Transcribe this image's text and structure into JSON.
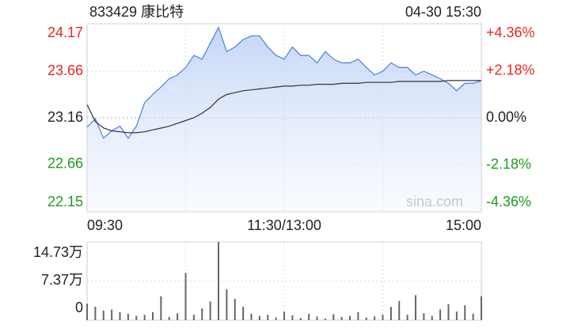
{
  "chart_data": [
    {
      "type": "line",
      "title": "833429 康比特",
      "timestamp": "04-30 15:30",
      "watermark": "sina.com",
      "x": [
        0,
        5,
        10,
        15,
        20,
        25,
        30,
        35,
        40,
        45,
        50,
        55,
        60,
        65,
        70,
        75,
        80,
        85,
        90,
        95,
        100,
        105,
        110,
        115,
        120,
        125,
        130,
        135,
        140,
        145,
        150,
        155,
        160,
        165,
        170,
        175,
        180,
        185,
        190,
        195,
        200,
        205,
        210,
        215,
        220,
        225,
        230,
        235,
        240
      ],
      "series": [
        {
          "color": "#4a7fe0",
          "values": [
            23.06,
            23.15,
            22.94,
            23.02,
            23.07,
            22.94,
            23.07,
            23.32,
            23.41,
            23.49,
            23.58,
            23.62,
            23.7,
            23.83,
            23.79,
            23.96,
            24.13,
            23.87,
            23.92,
            24.0,
            24.04,
            24.04,
            23.92,
            23.83,
            23.79,
            23.92,
            23.83,
            23.83,
            23.75,
            23.87,
            23.79,
            23.75,
            23.75,
            23.79,
            23.7,
            23.62,
            23.66,
            23.75,
            23.7,
            23.7,
            23.62,
            23.66,
            23.62,
            23.58,
            23.53,
            23.45,
            23.53,
            23.53,
            23.56
          ]
        },
        {
          "color": "#333333",
          "values": [
            23.3,
            23.12,
            23.05,
            23.02,
            23.01,
            23.0,
            23.0,
            23.01,
            23.03,
            23.05,
            23.07,
            23.1,
            23.13,
            23.16,
            23.21,
            23.27,
            23.36,
            23.41,
            23.43,
            23.45,
            23.46,
            23.47,
            23.48,
            23.49,
            23.5,
            23.5,
            23.51,
            23.51,
            23.52,
            23.52,
            23.52,
            23.53,
            23.53,
            23.53,
            23.54,
            23.54,
            23.54,
            23.54,
            23.55,
            23.55,
            23.55,
            23.55,
            23.55,
            23.55,
            23.56,
            23.56,
            23.56,
            23.56,
            23.56
          ]
        }
      ],
      "xlim": [
        0,
        240
      ],
      "xticks": [
        {
          "value": 0,
          "label": "09:30"
        },
        {
          "value": 120,
          "label": "11:30/13:00"
        },
        {
          "value": 240,
          "label": "15:00"
        }
      ],
      "ylim": [
        22.15,
        24.17
      ],
      "yticks": [
        22.15,
        22.66,
        23.16,
        23.66,
        24.17
      ],
      "y2lim": [
        -4.36,
        4.36
      ],
      "y2ticks": [
        {
          "value": -4.36,
          "label": "-4.36%"
        },
        {
          "value": -2.18,
          "label": "-2.18%"
        },
        {
          "value": 0,
          "label": "0.00%"
        },
        {
          "value": 2.18,
          "label": "+2.18%"
        },
        {
          "value": 4.36,
          "label": "+4.36%"
        }
      ],
      "up_color": "#e8261e",
      "down_color": "#1a9c1a",
      "grid": true
    },
    {
      "type": "bar",
      "color": "#666666",
      "x": [
        0,
        5,
        10,
        15,
        20,
        25,
        30,
        35,
        40,
        45,
        50,
        55,
        60,
        65,
        70,
        75,
        80,
        85,
        90,
        95,
        100,
        105,
        110,
        115,
        120,
        125,
        130,
        135,
        140,
        145,
        150,
        155,
        160,
        165,
        170,
        175,
        180,
        185,
        190,
        195,
        200,
        205,
        210,
        215,
        220,
        225,
        230,
        235,
        240
      ],
      "values": [
        3.1,
        2.5,
        1.8,
        2.0,
        1.5,
        1.2,
        0.8,
        1.0,
        1.5,
        4.5,
        0.6,
        1.3,
        8.9,
        1.0,
        2.2,
        3.5,
        14.73,
        5.8,
        4.0,
        2.5,
        1.2,
        0.8,
        1.0,
        0.5,
        1.6,
        0.9,
        0.4,
        1.2,
        0.7,
        0.3,
        1.1,
        0.6,
        0.8,
        1.5,
        0.5,
        0.7,
        1.0,
        2.5,
        3.6,
        1.0,
        4.7,
        1.3,
        0.8,
        2.0,
        3.0,
        1.6,
        2.8,
        1.2,
        4.5
      ],
      "xlim": [
        0,
        240
      ],
      "ylim": [
        0,
        14.73
      ],
      "yticks": [
        0,
        {
          "value": 7.37,
          "label": "7.37万"
        },
        {
          "value": 14.73,
          "label": "14.73万"
        }
      ],
      "grid": true
    }
  ]
}
